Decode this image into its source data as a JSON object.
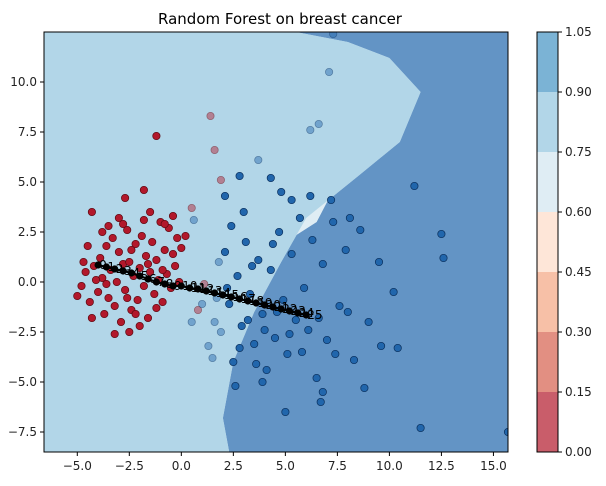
{
  "chart_data": {
    "type": "scatter",
    "title": "Random Forest on breast cancer",
    "xlabel": "",
    "ylabel": "",
    "xlim": [
      -6.6,
      15.7
    ],
    "ylim": [
      -8.5,
      12.5
    ],
    "x_ticks": [
      -5.0,
      -2.5,
      0.0,
      2.5,
      5.0,
      7.5,
      10.0,
      12.5,
      15.0
    ],
    "x_tick_labels": [
      "−5.0",
      "−2.5",
      "0.0",
      "2.5",
      "5.0",
      "7.5",
      "10.0",
      "12.5",
      "15.0"
    ],
    "y_ticks": [
      -7.5,
      -5.0,
      -2.5,
      0.0,
      2.5,
      5.0,
      7.5,
      10.0
    ],
    "y_tick_labels": [
      "−7.5",
      "−5.0",
      "−2.5",
      "0.0",
      "2.5",
      "5.0",
      "7.5",
      "10.0"
    ],
    "grid": false,
    "colorbar": {
      "levels": [
        0.0,
        0.15,
        0.3,
        0.45,
        0.6,
        0.75,
        0.9,
        1.05
      ],
      "labels": [
        "0.00",
        "0.15",
        "0.30",
        "0.45",
        "0.60",
        "0.75",
        "0.90",
        "1.05"
      ],
      "colors": [
        "#b2182b",
        "#d6604d",
        "#f4a582",
        "#fddbc7",
        "#d1e5f0",
        "#92c5de",
        "#4393c3",
        "#2166ac"
      ],
      "alpha": 0.7
    },
    "colors": {
      "class_0": "#b2182b",
      "class_1": "#2166ac",
      "path": "#000000"
    },
    "series": [
      {
        "class": 0,
        "points": [
          [
            -4.8,
            -0.2
          ],
          [
            -4.6,
            0.5
          ],
          [
            -4.4,
            -1.0
          ],
          [
            -4.2,
            0.8
          ],
          [
            -4.0,
            -0.5
          ],
          [
            -3.9,
            1.2
          ],
          [
            -3.8,
            0.2
          ],
          [
            -3.7,
            -1.6
          ],
          [
            -3.6,
            1.8
          ],
          [
            -3.5,
            -0.8
          ],
          [
            -3.4,
            0.6
          ],
          [
            -3.3,
            2.2
          ],
          [
            -3.2,
            -1.2
          ],
          [
            -3.1,
            0.0
          ],
          [
            -3.0,
            1.5
          ],
          [
            -2.9,
            -2.0
          ],
          [
            -2.8,
            0.9
          ],
          [
            -2.7,
            -0.4
          ],
          [
            -2.6,
            2.6
          ],
          [
            -2.5,
            1.0
          ],
          [
            -2.4,
            -1.4
          ],
          [
            -2.3,
            0.3
          ],
          [
            -2.2,
            1.9
          ],
          [
            -2.1,
            -0.9
          ],
          [
            -2.0,
            0.7
          ],
          [
            -1.9,
            2.3
          ],
          [
            -1.8,
            -0.2
          ],
          [
            -1.7,
            1.3
          ],
          [
            -1.6,
            -1.8
          ],
          [
            -1.5,
            0.5
          ],
          [
            -1.4,
            2.0
          ],
          [
            -1.3,
            -0.6
          ],
          [
            -1.2,
            1.1
          ],
          [
            -1.1,
            0.1
          ],
          [
            -1.0,
            3.0
          ],
          [
            -0.9,
            -1.0
          ],
          [
            -0.8,
            1.6
          ],
          [
            -0.7,
            0.4
          ],
          [
            -0.6,
            2.7
          ],
          [
            -0.5,
            -0.3
          ],
          [
            -0.4,
            1.4
          ],
          [
            -0.3,
            0.8
          ],
          [
            -0.2,
            2.2
          ],
          [
            -0.1,
            0.0
          ],
          [
            0.0,
            1.7
          ],
          [
            -3.5,
            2.8
          ],
          [
            -3.0,
            3.2
          ],
          [
            -2.5,
            -2.5
          ],
          [
            -2.0,
            -2.2
          ],
          [
            -1.5,
            3.5
          ],
          [
            -4.5,
            1.8
          ],
          [
            -4.3,
            -1.8
          ],
          [
            -3.8,
            2.5
          ],
          [
            -3.2,
            -2.6
          ],
          [
            -2.8,
            2.9
          ],
          [
            -2.2,
            -1.6
          ],
          [
            -1.8,
            3.1
          ],
          [
            -1.2,
            -1.3
          ],
          [
            -0.8,
            2.9
          ],
          [
            -4.7,
            1.0
          ],
          [
            -5.0,
            -0.7
          ],
          [
            -4.1,
            0.1
          ],
          [
            -3.6,
            -0.1
          ],
          [
            -2.6,
            -0.8
          ],
          [
            -2.4,
            1.6
          ],
          [
            -1.6,
            0.9
          ],
          [
            -0.9,
            0.6
          ],
          [
            -4.3,
            3.5
          ],
          [
            -2.7,
            4.2
          ],
          [
            -1.8,
            4.6
          ],
          [
            -1.2,
            7.3
          ],
          [
            0.5,
            3.7
          ],
          [
            0.2,
            2.3
          ],
          [
            0.8,
            -1.4
          ],
          [
            1.1,
            -0.1
          ],
          [
            -0.4,
            3.3
          ],
          [
            1.4,
            8.3
          ],
          [
            1.6,
            6.6
          ],
          [
            1.9,
            5.1
          ]
        ]
      },
      {
        "class": 1,
        "points": [
          [
            1.5,
            -3.8
          ],
          [
            1.7,
            -0.8
          ],
          [
            1.9,
            -2.5
          ],
          [
            2.1,
            1.5
          ],
          [
            2.3,
            -1.1
          ],
          [
            2.5,
            -4.0
          ],
          [
            2.7,
            0.3
          ],
          [
            2.9,
            -2.2
          ],
          [
            3.1,
            2.0
          ],
          [
            3.3,
            -0.6
          ],
          [
            3.5,
            -3.1
          ],
          [
            3.7,
            1.1
          ],
          [
            3.9,
            -1.6
          ],
          [
            4.1,
            -4.4
          ],
          [
            4.3,
            0.6
          ],
          [
            4.5,
            -2.8
          ],
          [
            4.7,
            2.5
          ],
          [
            4.9,
            -0.9
          ],
          [
            5.1,
            -3.6
          ],
          [
            5.3,
            1.4
          ],
          [
            5.5,
            -1.9
          ],
          [
            5.7,
            3.2
          ],
          [
            5.9,
            -0.3
          ],
          [
            6.1,
            -2.4
          ],
          [
            6.3,
            2.1
          ],
          [
            6.5,
            -4.8
          ],
          [
            6.8,
            0.9
          ],
          [
            7.0,
            -2.9
          ],
          [
            7.3,
            3.0
          ],
          [
            7.6,
            -1.2
          ],
          [
            7.9,
            1.6
          ],
          [
            8.3,
            -3.9
          ],
          [
            8.6,
            2.6
          ],
          [
            9.0,
            -2.0
          ],
          [
            9.5,
            1.0
          ],
          [
            10.2,
            -0.5
          ],
          [
            10.4,
            -3.3
          ],
          [
            11.2,
            4.8
          ],
          [
            12.5,
            2.4
          ],
          [
            12.6,
            1.2
          ],
          [
            11.5,
            -7.3
          ],
          [
            15.7,
            -7.5
          ],
          [
            4.3,
            5.2
          ],
          [
            5.3,
            4.1
          ],
          [
            5.0,
            -6.5
          ],
          [
            6.7,
            -6.0
          ],
          [
            2.8,
            -3.3
          ],
          [
            3.6,
            -4.1
          ],
          [
            2.4,
            2.8
          ],
          [
            3.0,
            3.5
          ],
          [
            4.8,
            4.5
          ],
          [
            6.2,
            4.3
          ],
          [
            7.2,
            4.1
          ],
          [
            8.1,
            3.2
          ],
          [
            8.8,
            -5.3
          ],
          [
            6.8,
            -5.5
          ],
          [
            1.6,
            -2.0
          ],
          [
            2.2,
            -0.3
          ],
          [
            3.2,
            -1.9
          ],
          [
            4.0,
            -2.4
          ],
          [
            4.6,
            -1.5
          ],
          [
            5.2,
            -2.6
          ],
          [
            5.8,
            -3.5
          ],
          [
            6.6,
            -1.8
          ],
          [
            7.4,
            -3.6
          ],
          [
            8.0,
            -1.5
          ],
          [
            9.6,
            -3.2
          ],
          [
            3.4,
            0.8
          ],
          [
            4.4,
            1.9
          ],
          [
            1.8,
            1.0
          ],
          [
            2.6,
            -5.2
          ],
          [
            3.9,
            -5.0
          ],
          [
            1.3,
            -3.2
          ],
          [
            1.0,
            -1.1
          ],
          [
            0.5,
            -2.0
          ],
          [
            0.6,
            3.1
          ],
          [
            2.1,
            4.3
          ],
          [
            2.8,
            5.3
          ],
          [
            3.7,
            6.1
          ],
          [
            6.2,
            7.6
          ],
          [
            6.6,
            7.9
          ],
          [
            7.1,
            10.5
          ],
          [
            7.3,
            12.4
          ]
        ]
      }
    ],
    "path": {
      "points": [
        [
          -4.0,
          0.85
        ],
        [
          -3.6,
          0.75
        ],
        [
          -3.2,
          0.65
        ],
        [
          -2.8,
          0.55
        ],
        [
          -2.4,
          0.45
        ],
        [
          -2.0,
          0.3
        ],
        [
          -1.6,
          0.15
        ],
        [
          -1.2,
          0.0
        ],
        [
          -0.8,
          -0.1
        ],
        [
          -0.4,
          -0.2
        ],
        [
          0.0,
          -0.2
        ],
        [
          0.4,
          -0.3
        ],
        [
          0.8,
          -0.35
        ],
        [
          1.2,
          -0.45
        ],
        [
          1.6,
          -0.55
        ],
        [
          2.0,
          -0.65
        ],
        [
          2.4,
          -0.75
        ],
        [
          2.8,
          -0.85
        ],
        [
          3.2,
          -0.95
        ],
        [
          3.6,
          -1.05
        ],
        [
          4.0,
          -1.15
        ],
        [
          4.4,
          -1.25
        ],
        [
          4.8,
          -1.35
        ],
        [
          5.2,
          -1.45
        ],
        [
          5.6,
          -1.55
        ],
        [
          6.0,
          -1.65
        ]
      ],
      "labels": [
        "0",
        "1",
        "2",
        "3",
        "4",
        "5",
        "6",
        "7",
        "8",
        "9",
        "10",
        "11",
        "12",
        "13",
        "14",
        "15",
        "16",
        "17",
        "18",
        "19",
        "20",
        "21",
        "22",
        "23",
        "24",
        "25"
      ]
    }
  }
}
